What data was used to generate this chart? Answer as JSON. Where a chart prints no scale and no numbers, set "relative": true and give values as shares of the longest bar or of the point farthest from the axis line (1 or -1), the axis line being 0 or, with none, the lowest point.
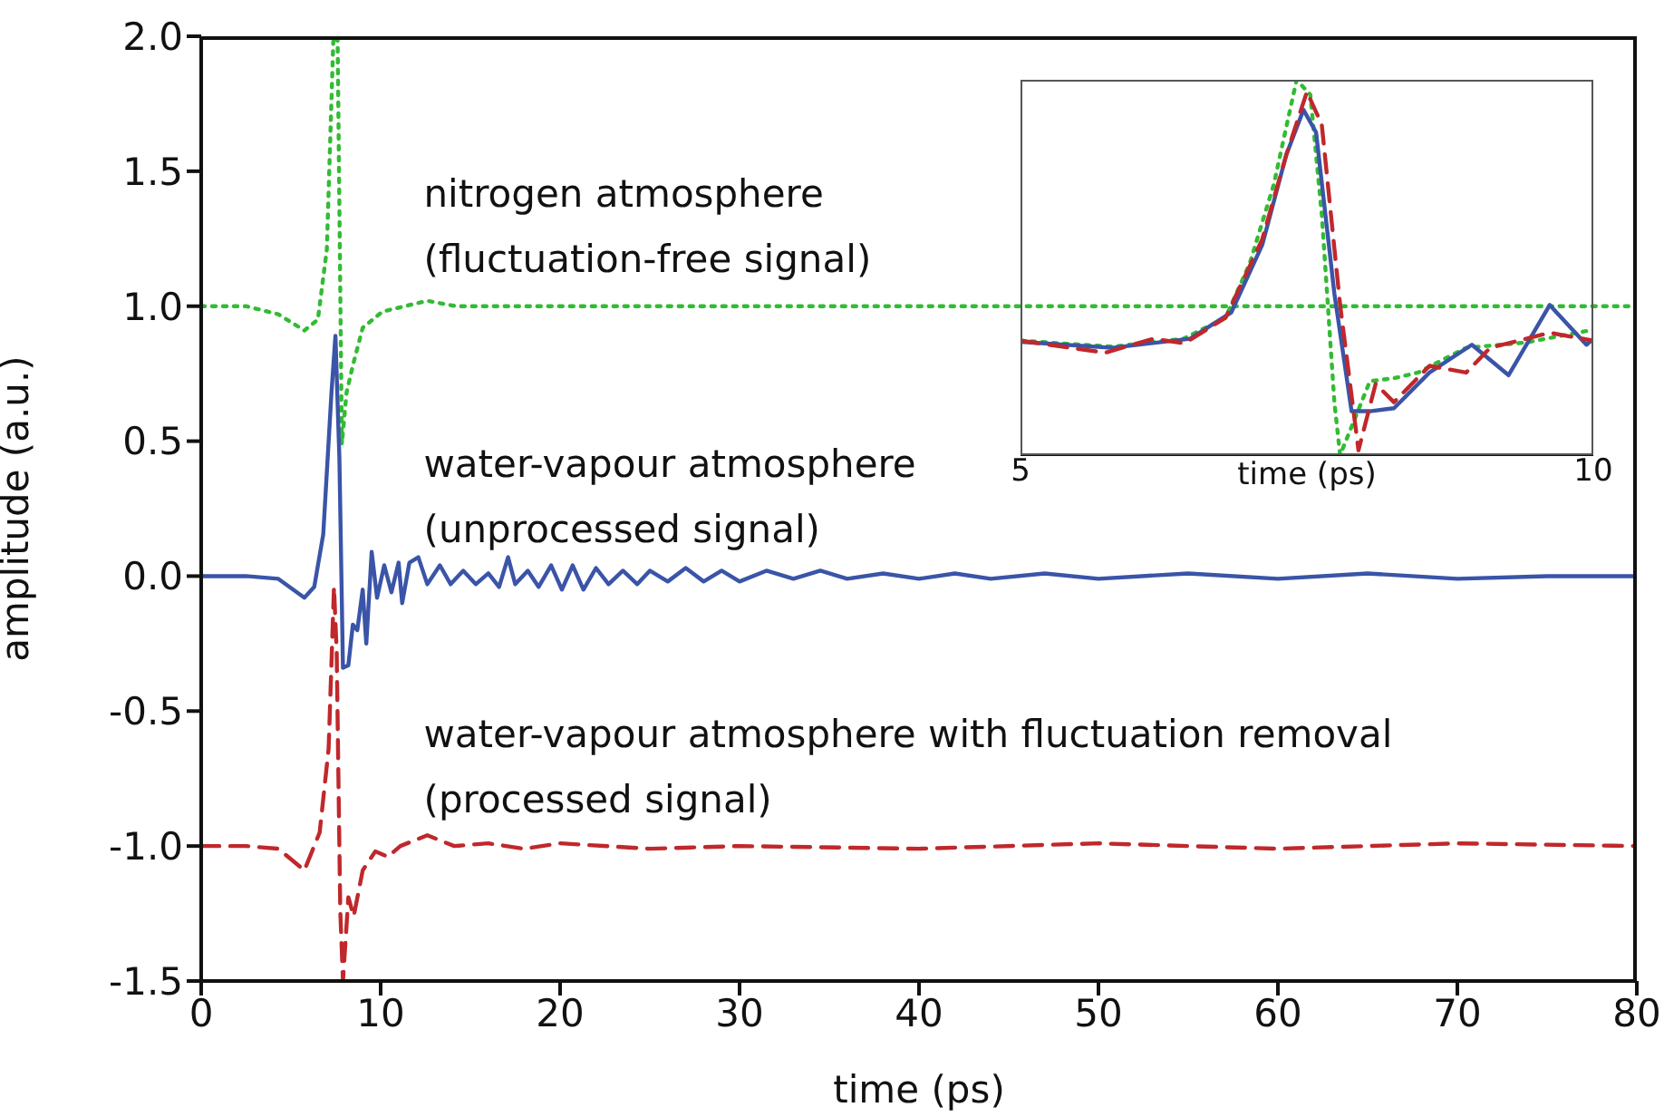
{
  "chart_data": [
    {
      "type": "line",
      "xlabel": "time (ps)",
      "ylabel": "amplitude (a.u.)",
      "xlim": [
        0,
        80
      ],
      "xticks": [
        0,
        10,
        20,
        30,
        40,
        50,
        60,
        70,
        80
      ],
      "ylim": [
        -1.5,
        2.0
      ],
      "yticks": [
        {
          "value": -1.5,
          "label": "-1.5"
        },
        {
          "value": -1,
          "label": "-1.0"
        },
        {
          "value": -0.5,
          "label": "-0.5"
        },
        {
          "value": 0,
          "label": "0.0"
        },
        {
          "value": 0.5,
          "label": "0.5"
        },
        {
          "value": 1,
          "label": "1.0"
        },
        {
          "value": 1.5,
          "label": "1.5"
        },
        {
          "value": 2,
          "label": "2.0"
        }
      ],
      "grid": false,
      "legend": false,
      "marker": "none",
      "series": [
        {
          "name": "nitrogen atmosphere\n(fluctuation-free signal)",
          "color": "#33bb33",
          "line_style": "dotted",
          "x": [
            0,
            2.5,
            4.3,
            5.75,
            6.5,
            7.0,
            7.36,
            7.5,
            7.6,
            7.84,
            8.1,
            8.45,
            9.0,
            10.1,
            12.6,
            14.2,
            20,
            40,
            60,
            80
          ],
          "values": [
            1,
            1,
            0.97,
            0.91,
            0.95,
            1.21,
            1.98,
            2.0,
            2.0,
            0.49,
            0.68,
            0.78,
            0.92,
            0.98,
            1.02,
            1.0,
            1.0,
            1.0,
            1.0,
            1.0
          ]
        },
        {
          "name": "water-vapour atmosphere\n(unprocessed signal)",
          "color": "#3a54a8",
          "line_style": "solid",
          "x": [
            0,
            2.5,
            4.3,
            5.75,
            6.3,
            6.8,
            7.26,
            7.48,
            7.7,
            7.9,
            8.2,
            8.45,
            8.7,
            9.0,
            9.2,
            9.5,
            9.8,
            10.2,
            10.6,
            11.0,
            11.2,
            11.6,
            12.1,
            12.6,
            13.3,
            13.9,
            14.6,
            15.3,
            16.0,
            16.6,
            17.1,
            17.5,
            18.2,
            18.8,
            19.5,
            20.1,
            20.7,
            21.3,
            22,
            22.7,
            23.5,
            24.3,
            25,
            26,
            27,
            28,
            29,
            30,
            31.5,
            33,
            34.5,
            36,
            38,
            40,
            42,
            44,
            47,
            50,
            55,
            60,
            65,
            70,
            75,
            80
          ],
          "values": [
            0,
            0,
            -0.01,
            -0.08,
            -0.04,
            0.155,
            0.68,
            0.89,
            0.44,
            -0.34,
            -0.33,
            -0.18,
            -0.2,
            -0.05,
            -0.25,
            0.09,
            -0.08,
            0.04,
            -0.06,
            0.05,
            -0.1,
            0.05,
            0.07,
            -0.03,
            0.04,
            -0.03,
            0.02,
            -0.03,
            0.01,
            -0.04,
            0.07,
            -0.03,
            0.02,
            -0.04,
            0.04,
            -0.05,
            0.04,
            -0.05,
            0.03,
            -0.03,
            0.02,
            -0.03,
            0.02,
            -0.02,
            0.03,
            -0.02,
            0.02,
            -0.02,
            0.02,
            -0.01,
            0.02,
            -0.01,
            0.01,
            -0.01,
            0.01,
            -0.01,
            0.01,
            -0.01,
            0.01,
            -0.01,
            0.01,
            -0.01,
            0,
            0
          ]
        },
        {
          "name": "water-vapour atmosphere with fluctuation removal\n(processed signal)",
          "color": "#c0282b",
          "line_style": "dashed",
          "x": [
            0,
            2.5,
            4.3,
            5.75,
            6.6,
            7.1,
            7.4,
            7.55,
            7.75,
            7.9,
            8.2,
            8.5,
            9.0,
            9.7,
            10.4,
            11.1,
            12.6,
            14.1,
            16,
            18,
            20,
            25,
            30,
            40,
            50,
            60,
            70,
            80
          ],
          "values": [
            -1,
            -1,
            -1.01,
            -1.09,
            -0.95,
            -0.64,
            -0.04,
            -0.28,
            -1.24,
            -1.5,
            -1.19,
            -1.26,
            -1.09,
            -1.02,
            -1.04,
            -1.0,
            -0.96,
            -1.0,
            -0.99,
            -1.01,
            -0.99,
            -1.01,
            -1.0,
            -1.01,
            -0.99,
            -1.01,
            -0.99,
            -1.0
          ]
        }
      ]
    },
    {
      "type": "line",
      "xlabel": "time (ps)",
      "xlim": [
        5,
        10
      ],
      "xticks": [
        5,
        10
      ],
      "relative": true,
      "tick_labels": "x",
      "legend": false,
      "marker": "none",
      "series": [
        {
          "color": "#33bb33",
          "line_style": "dotted",
          "x": [
            5.0,
            5.8,
            6.42,
            6.79,
            7.0,
            7.21,
            7.41,
            7.53,
            7.63,
            7.74,
            7.79,
            8.05,
            8.26,
            8.47,
            8.89,
            9.41,
            10
          ],
          "values": [
            0.305,
            0.289,
            0.31,
            0.366,
            0.51,
            0.72,
            1.0,
            0.96,
            0.64,
            0.14,
            0,
            0.197,
            0.205,
            0.22,
            0.286,
            0.3,
            0.334
          ]
        },
        {
          "color": "#3a54a8",
          "line_style": "solid",
          "x": [
            5,
            5.8,
            6.48,
            6.84,
            7.11,
            7.32,
            7.47,
            7.58,
            7.74,
            7.89,
            8.05,
            8.26,
            8.57,
            8.94,
            9.26,
            9.62,
            9.94,
            10
          ],
          "values": [
            0.302,
            0.286,
            0.31,
            0.38,
            0.56,
            0.8,
            0.92,
            0.86,
            0.43,
            0.117,
            0.117,
            0.125,
            0.22,
            0.294,
            0.213,
            0.4,
            0.294,
            0.31
          ]
        },
        {
          "color": "#c0282b",
          "line_style": "dashed",
          "x": [
            5,
            5.74,
            6.16,
            6.43,
            6.79,
            7.11,
            7.32,
            7.5,
            7.63,
            7.79,
            7.95,
            8.1,
            8.26,
            8.57,
            8.89,
            9.1,
            9.62,
            10
          ],
          "values": [
            0.305,
            0.273,
            0.31,
            0.298,
            0.366,
            0.575,
            0.8,
            0.968,
            0.88,
            0.4,
            0.013,
            0.19,
            0.141,
            0.238,
            0.22,
            0.286,
            0.326,
            0.305
          ]
        }
      ]
    }
  ]
}
